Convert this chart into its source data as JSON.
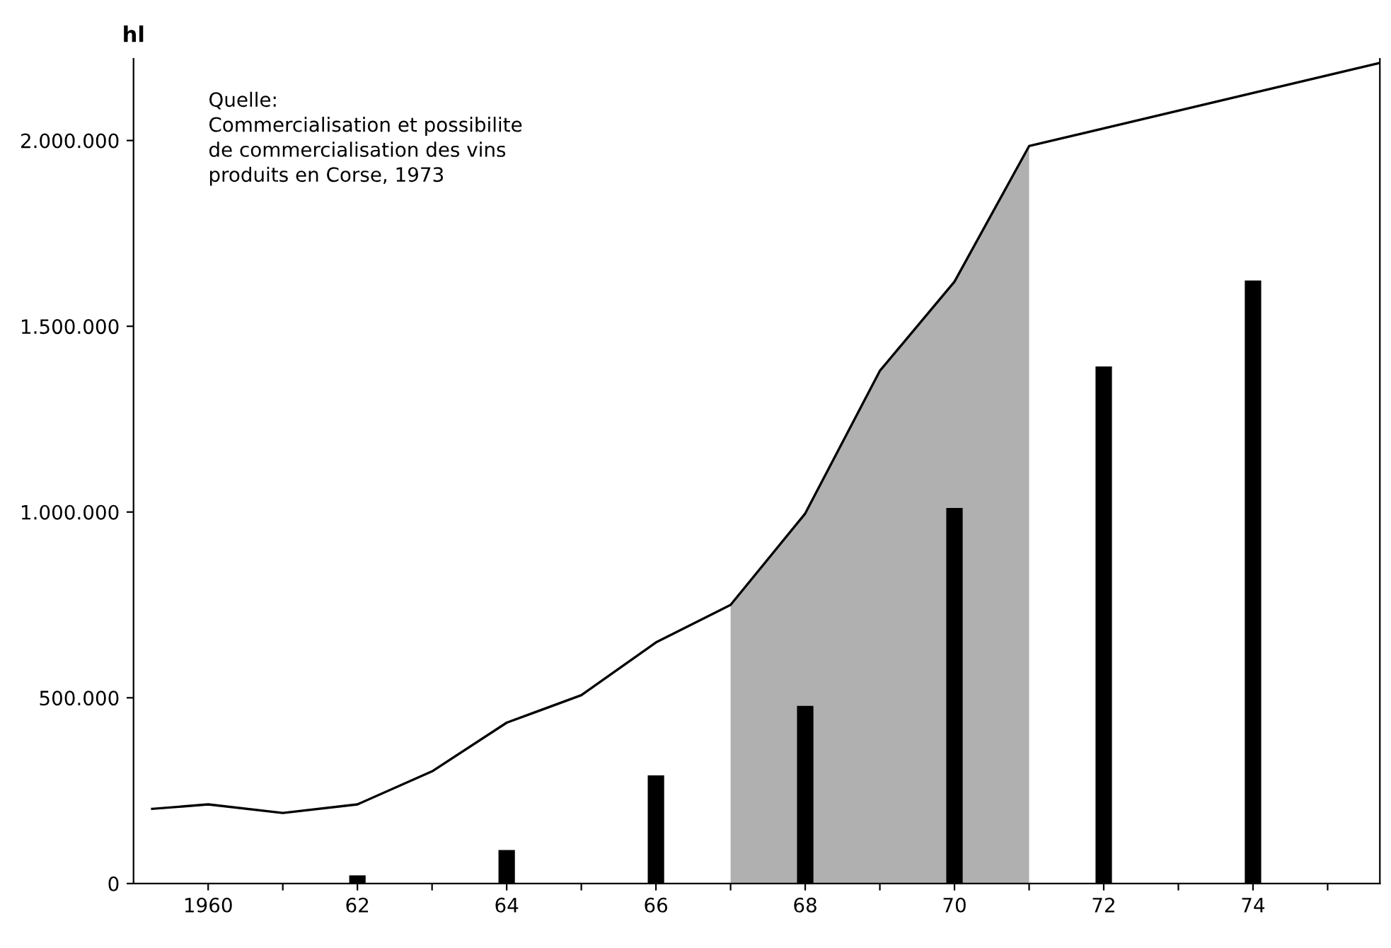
{
  "chart_data": {
    "type": "bar",
    "ylabel": "hl",
    "annotations": [
      "Quelle:\nCommercialisation et possibilite\nde commercialisation des vins\nproduits en Corse, 1973"
    ],
    "xlim": [
      1959,
      1975.7
    ],
    "ylim": [
      0,
      2220000
    ],
    "xticks": [
      {
        "value": 1960,
        "label": "1960"
      },
      {
        "value": 1961,
        "label": null
      },
      {
        "value": 1962,
        "label": "62"
      },
      {
        "value": 1963,
        "label": null
      },
      {
        "value": 1964,
        "label": "64"
      },
      {
        "value": 1965,
        "label": null
      },
      {
        "value": 1966,
        "label": "66"
      },
      {
        "value": 1967,
        "label": null
      },
      {
        "value": 1968,
        "label": "68"
      },
      {
        "value": 1969,
        "label": null
      },
      {
        "value": 1970,
        "label": "70"
      },
      {
        "value": 1971,
        "label": null
      },
      {
        "value": 1972,
        "label": "72"
      },
      {
        "value": 1973,
        "label": null
      },
      {
        "value": 1974,
        "label": "74"
      },
      {
        "value": 1975,
        "label": null
      }
    ],
    "yticks": [
      {
        "value": 0,
        "label": "0"
      },
      {
        "value": 500000,
        "label": "500.000"
      },
      {
        "value": 1000000,
        "label": "1.000.000"
      },
      {
        "value": 1500000,
        "label": "1.500.000"
      },
      {
        "value": 2000000,
        "label": "2.000.000"
      }
    ],
    "grid": false,
    "series": [
      {
        "type": "area",
        "color": "#b0b0b0",
        "x": [
          1967,
          1968,
          1969,
          1970,
          1971
        ],
        "values": [
          750000,
          996000,
          1380000,
          1620000,
          1985000
        ]
      },
      {
        "type": "line",
        "color": "#000000",
        "x": [
          1959.25,
          1960,
          1961,
          1962,
          1963,
          1964,
          1965,
          1966,
          1967,
          1968,
          1969,
          1970,
          1971,
          1975.7
        ],
        "values": [
          201000,
          213000,
          190000,
          213000,
          302000,
          433000,
          507000,
          649000,
          750000,
          996000,
          1380000,
          1620000,
          1985000,
          2209000
        ]
      },
      {
        "color": "#000000",
        "x": [
          1962,
          1964,
          1966,
          1968,
          1970,
          1972,
          1974
        ],
        "values": [
          22000,
          90000,
          291000,
          478000,
          1011000,
          1392000,
          1623000
        ]
      }
    ]
  }
}
